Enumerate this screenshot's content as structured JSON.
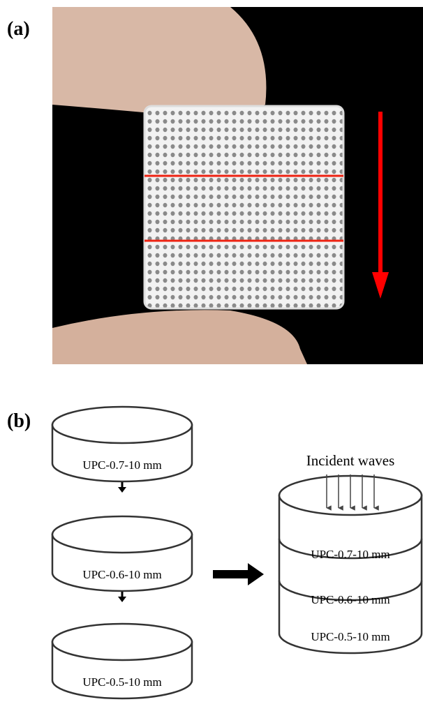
{
  "panels": {
    "a": {
      "label": "(a)"
    },
    "b": {
      "label": "(b)",
      "cylinders": [
        "UPC-0.7-10 mm",
        "UPC-0.6-10 mm",
        "UPC-0.5-10 mm"
      ],
      "stack": {
        "title": "Incident waves",
        "layers": [
          "UPC-0.7-10 mm",
          "UPC-0.6-10 mm",
          "UPC-0.5-10 mm"
        ]
      }
    }
  }
}
